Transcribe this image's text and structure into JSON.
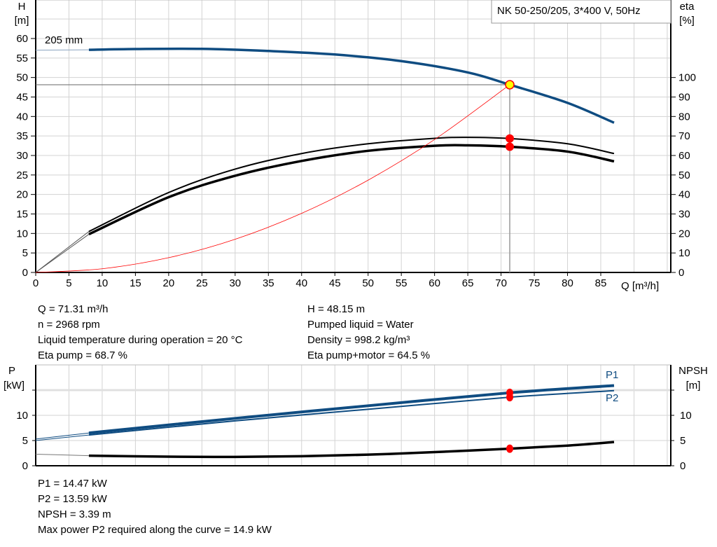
{
  "chart_data": [
    {
      "type": "line",
      "title_box": "NK 50-250/205, 3*400 V, 50Hz",
      "xlabel": "Q [m³/h]",
      "ylabel_left": [
        "H",
        "[m]"
      ],
      "ylabel_right": [
        "eta",
        "[%]"
      ],
      "xlim": [
        0,
        95.5
      ],
      "ylim_left": [
        0,
        70
      ],
      "ylim_right": [
        0,
        140
      ],
      "xticks": [
        0,
        5,
        10,
        15,
        20,
        25,
        30,
        35,
        40,
        45,
        50,
        55,
        60,
        65,
        70,
        75,
        80,
        85
      ],
      "yticks_left": [
        0,
        5,
        10,
        15,
        20,
        25,
        30,
        35,
        40,
        45,
        50,
        55,
        60
      ],
      "yticks_right": [
        0,
        10,
        20,
        30,
        40,
        50,
        60,
        70,
        80,
        90,
        100
      ],
      "grid": true,
      "curve_label": "205 mm",
      "series": [
        {
          "role": "H",
          "axis": "left",
          "color": "#0f4c81",
          "extrapolated_to": 8,
          "x": [
            0,
            8,
            15,
            25,
            35,
            45,
            55,
            65,
            71.31,
            80,
            87
          ],
          "y": [
            57,
            57.1,
            57.3,
            57.35,
            56.8,
            55.9,
            54.2,
            51.3,
            48.15,
            43.5,
            38.4
          ]
        },
        {
          "role": "eta pump",
          "axis": "right",
          "color": "#000000",
          "extrapolated_to": 8,
          "x": [
            0,
            8,
            20,
            30,
            40,
            50,
            60,
            65,
            71.31,
            80,
            87
          ],
          "y": [
            0,
            21,
            41,
            53,
            61,
            66,
            68.8,
            69.3,
            68.7,
            66,
            61
          ]
        },
        {
          "role": "eta pump+motor",
          "axis": "right",
          "color": "#000000",
          "extrapolated_to": 8,
          "x": [
            0,
            8,
            20,
            30,
            40,
            50,
            60,
            65,
            71.31,
            80,
            87
          ],
          "y": [
            0,
            19.6,
            38.6,
            49.6,
            57.2,
            62.4,
            65,
            65.2,
            64.5,
            62,
            57
          ]
        },
        {
          "role": "system curve",
          "axis": "left",
          "color": "#ff0000",
          "x": [
            0,
            10,
            20,
            30,
            40,
            50,
            60,
            71.31
          ],
          "y": [
            0,
            0.95,
            3.79,
            8.52,
            15.15,
            23.67,
            34.09,
            48.15
          ]
        }
      ],
      "duty_point": {
        "Q": 71.31,
        "H": 48.15,
        "eta_pump": 68.7,
        "eta_pump_motor": 64.5
      }
    },
    {
      "type": "line",
      "ylabel_left": [
        "P",
        "[kW]"
      ],
      "ylabel_right": [
        "NPSH",
        "[m]"
      ],
      "xlim": [
        0,
        95.5
      ],
      "ylim_left": [
        0,
        20
      ],
      "ylim_right": [
        0,
        20
      ],
      "yticks_left": [
        0,
        5,
        10
      ],
      "yticks_right": [
        0,
        5,
        10
      ],
      "grid": true,
      "series": [
        {
          "name": "P1",
          "color": "#0f4c81",
          "extrapolated_to": 8,
          "x": [
            0,
            8,
            30,
            50,
            71.31,
            87
          ],
          "y": [
            5.3,
            6.5,
            9.4,
            11.9,
            14.47,
            15.9
          ]
        },
        {
          "name": "P2",
          "color": "#0f4c81",
          "extrapolated_to": 8,
          "x": [
            0,
            8,
            30,
            50,
            71.31,
            87
          ],
          "y": [
            5.0,
            6.1,
            8.9,
            11.2,
            13.59,
            14.9
          ]
        },
        {
          "role": "NPSH",
          "color": "#000000",
          "extrapolated_to": 8,
          "x": [
            0,
            8,
            20,
            30,
            40,
            50,
            60,
            71.31,
            80,
            87
          ],
          "y": [
            2.3,
            2.0,
            1.8,
            1.75,
            1.9,
            2.2,
            2.7,
            3.39,
            4.0,
            4.7
          ]
        }
      ],
      "duty_point": {
        "Q": 71.31,
        "P1": 14.47,
        "P2": 13.59,
        "NPSH": 3.39
      }
    }
  ],
  "info_top": {
    "left": [
      "Q = 71.31 m³/h",
      "n = 2968 rpm",
      "Liquid temperature during operation = 20 °C",
      "Eta pump = 68.7 %"
    ],
    "right": [
      "H = 48.15 m",
      "Pumped liquid = Water",
      "Density = 998.2 kg/m³",
      "Eta pump+motor = 64.5 %"
    ]
  },
  "info_bottom": [
    "P1 = 14.47 kW",
    "P2 = 13.59 kW",
    "NPSH = 3.39 m",
    "Max power P2 required along the curve = 14.9 kW"
  ],
  "colors": {
    "grid": "#d3d3d3",
    "duty_marker": "#ff0000",
    "duty_fill": "#ffff00"
  }
}
